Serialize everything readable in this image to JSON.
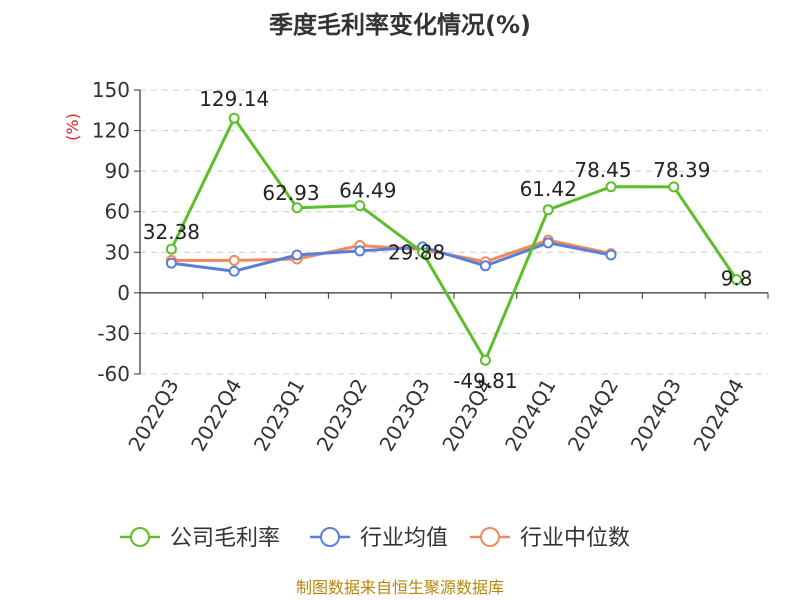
{
  "chart_data": {
    "type": "line",
    "title": "季度毛利率变化情况(%)",
    "ylabel": "(%)",
    "xlabel": "",
    "categories": [
      "2022Q3",
      "2022Q4",
      "2023Q1",
      "2023Q2",
      "2023Q3",
      "2023Q4",
      "2024Q1",
      "2024Q2",
      "2024Q3",
      "2024Q4"
    ],
    "ylim": [
      -60,
      150
    ],
    "yticks": [
      150,
      120,
      90,
      60,
      30,
      0,
      -30,
      -60
    ],
    "grid": "horizontal dashed",
    "legend_position": "bottom",
    "series": [
      {
        "name": "公司毛利率",
        "color": "#5cbf2a",
        "values": [
          32.38,
          129.14,
          62.93,
          64.49,
          29.88,
          -49.81,
          61.42,
          78.45,
          78.39,
          9.8
        ],
        "labels": [
          "32.38",
          "129.14",
          "62.93",
          "64.49",
          "29.88",
          "-49.81",
          "61.42",
          "78.45",
          "78.39",
          "9.8"
        ]
      },
      {
        "name": "行业均值",
        "color": "#5b7fd8",
        "values": [
          22,
          16,
          28,
          31,
          34,
          20,
          37,
          28,
          null,
          null
        ]
      },
      {
        "name": "行业中位数",
        "color": "#f08a5d",
        "values": [
          24,
          24,
          25,
          35,
          32,
          23,
          39,
          29,
          null,
          null
        ]
      }
    ]
  },
  "source": "制图数据来自恒生聚源数据库"
}
